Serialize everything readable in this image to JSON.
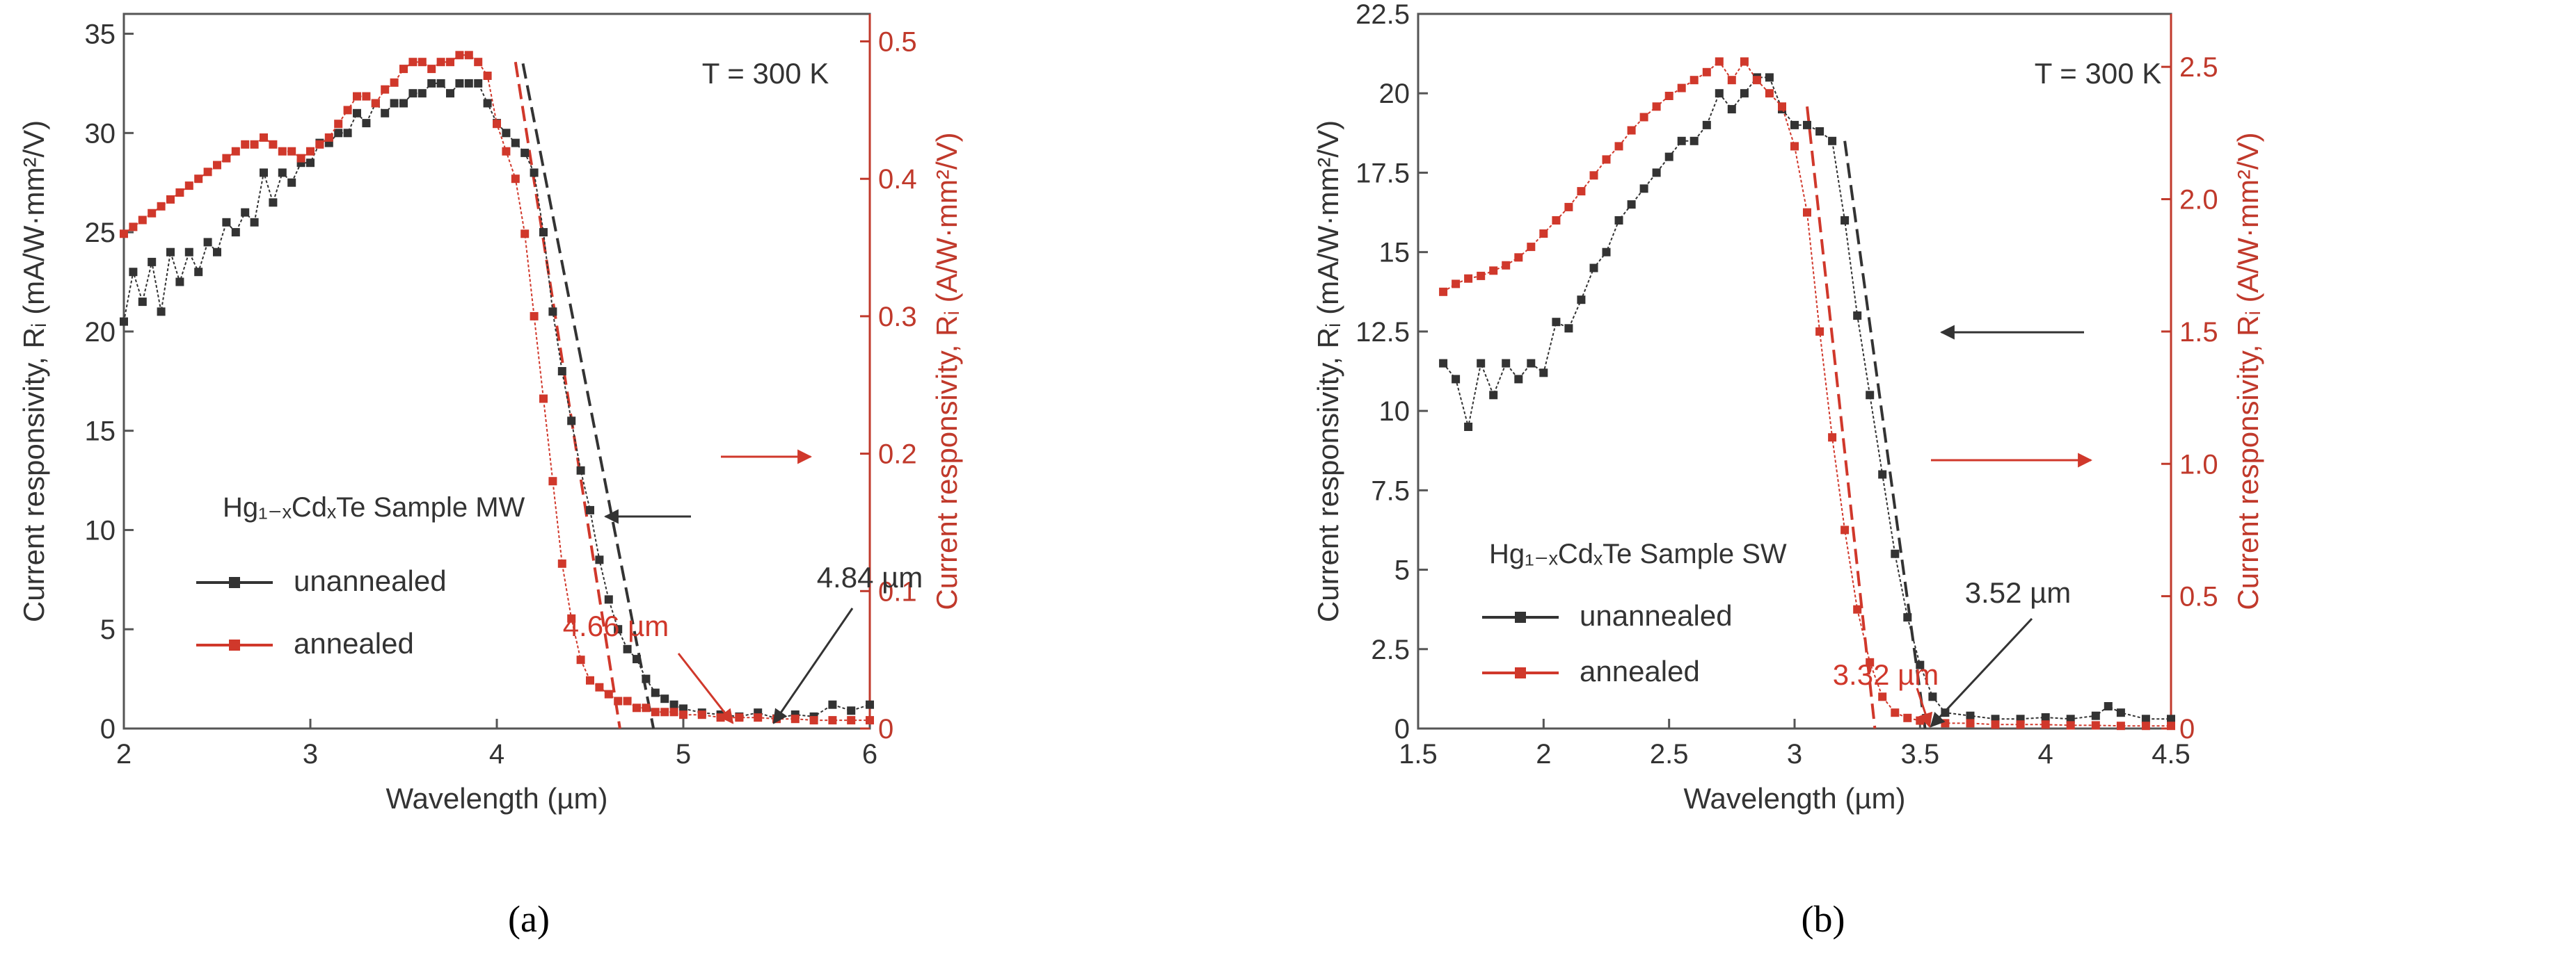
{
  "colors": {
    "black": "#333333",
    "red": "#d0382b",
    "axis_red": "#c0392b"
  },
  "chart_data": [
    {
      "panel": "a",
      "panel_label": "(a)",
      "type": "line",
      "xlabel": "Wavelength (µm)",
      "ylabel_left": "Current responsivity, Rᵢ (mA/W·mm²/V)",
      "ylabel_right": "Current responsivity, Rᵢ (A/W·mm²/V)",
      "xlim": [
        2,
        6
      ],
      "xticks": [
        2,
        3,
        4,
        5,
        6
      ],
      "ylim_left": [
        0,
        36
      ],
      "yticks_left": [
        0,
        5,
        10,
        15,
        20,
        25,
        30,
        35
      ],
      "ylim_right": [
        0,
        0.52
      ],
      "yticks_right": [
        0,
        0.1,
        0.2,
        0.3,
        0.4,
        0.5
      ],
      "ytick_labels_right": [
        "0",
        "0.1",
        "0.2",
        "0.3",
        "0.4",
        "0.5"
      ],
      "temperature_label": "T = 300 K",
      "legend_title": "Hg₁₋ₓCdₓTe Sample MW",
      "legend_position": "center-left",
      "cutoff_labels": [
        {
          "text": "4.84 µm",
          "x": 4.84,
          "color": "black"
        },
        {
          "text": "4.66 µm",
          "x": 4.66,
          "color": "red"
        }
      ],
      "series": [
        {
          "name": "unannealed",
          "axis": "left",
          "color": "black",
          "x": [
            2.0,
            2.05,
            2.1,
            2.15,
            2.2,
            2.25,
            2.3,
            2.35,
            2.4,
            2.45,
            2.5,
            2.55,
            2.6,
            2.65,
            2.7,
            2.75,
            2.8,
            2.85,
            2.9,
            2.95,
            3.0,
            3.05,
            3.1,
            3.15,
            3.2,
            3.25,
            3.3,
            3.35,
            3.4,
            3.45,
            3.5,
            3.55,
            3.6,
            3.65,
            3.7,
            3.75,
            3.8,
            3.85,
            3.9,
            3.95,
            4.0,
            4.05,
            4.1,
            4.15,
            4.2,
            4.25,
            4.3,
            4.35,
            4.4,
            4.45,
            4.5,
            4.55,
            4.6,
            4.65,
            4.7,
            4.75,
            4.8,
            4.85,
            4.9,
            4.95,
            5.0,
            5.1,
            5.2,
            5.3,
            5.4,
            5.5,
            5.6,
            5.7,
            5.8,
            5.9,
            6.0
          ],
          "y": [
            20.5,
            23.0,
            21.5,
            23.5,
            21.0,
            24.0,
            22.5,
            24.0,
            23.0,
            24.5,
            24.0,
            25.5,
            25.0,
            26.0,
            25.5,
            28.0,
            26.5,
            28.0,
            27.5,
            28.5,
            28.5,
            29.5,
            29.5,
            30.0,
            30.0,
            31.0,
            30.5,
            31.5,
            31.0,
            31.5,
            31.5,
            32.0,
            32.0,
            32.5,
            32.5,
            32.0,
            32.5,
            32.5,
            32.5,
            31.5,
            30.5,
            30.0,
            29.5,
            29.0,
            28.0,
            25.0,
            21.0,
            18.0,
            15.5,
            13.0,
            11.0,
            8.5,
            6.5,
            5.0,
            4.0,
            3.5,
            2.5,
            1.8,
            1.5,
            1.2,
            1.0,
            0.8,
            0.7,
            0.6,
            0.8,
            0.5,
            0.7,
            0.6,
            1.2,
            0.9,
            1.2
          ]
        },
        {
          "name": "annealed",
          "axis": "right",
          "color": "red",
          "x": [
            2.0,
            2.05,
            2.1,
            2.15,
            2.2,
            2.25,
            2.3,
            2.35,
            2.4,
            2.45,
            2.5,
            2.55,
            2.6,
            2.65,
            2.7,
            2.75,
            2.8,
            2.85,
            2.9,
            2.95,
            3.0,
            3.05,
            3.1,
            3.15,
            3.2,
            3.25,
            3.3,
            3.35,
            3.4,
            3.45,
            3.5,
            3.55,
            3.6,
            3.65,
            3.7,
            3.75,
            3.8,
            3.85,
            3.9,
            3.95,
            4.0,
            4.05,
            4.1,
            4.15,
            4.2,
            4.25,
            4.3,
            4.35,
            4.4,
            4.45,
            4.5,
            4.55,
            4.6,
            4.65,
            4.7,
            4.75,
            4.8,
            4.85,
            4.9,
            4.95,
            5.0,
            5.1,
            5.2,
            5.3,
            5.4,
            5.5,
            5.6,
            5.7,
            5.8,
            5.9,
            6.0
          ],
          "y": [
            0.36,
            0.365,
            0.37,
            0.375,
            0.38,
            0.385,
            0.39,
            0.395,
            0.4,
            0.405,
            0.41,
            0.415,
            0.42,
            0.425,
            0.425,
            0.43,
            0.425,
            0.42,
            0.42,
            0.415,
            0.42,
            0.425,
            0.43,
            0.44,
            0.45,
            0.46,
            0.46,
            0.455,
            0.465,
            0.47,
            0.48,
            0.485,
            0.485,
            0.48,
            0.485,
            0.485,
            0.49,
            0.49,
            0.485,
            0.475,
            0.44,
            0.42,
            0.4,
            0.36,
            0.3,
            0.24,
            0.18,
            0.12,
            0.08,
            0.05,
            0.035,
            0.03,
            0.025,
            0.02,
            0.02,
            0.015,
            0.015,
            0.012,
            0.012,
            0.012,
            0.01,
            0.01,
            0.008,
            0.008,
            0.008,
            0.007,
            0.007,
            0.006,
            0.006,
            0.006,
            0.006
          ]
        }
      ]
    },
    {
      "panel": "b",
      "panel_label": "(b)",
      "type": "line",
      "xlabel": "Wavelength (µm)",
      "ylabel_left": "Current responsivity, Rᵢ (mA/W·mm²/V)",
      "ylabel_right": "Current responsivity, Rᵢ (A/W·mm²/V)",
      "xlim": [
        1.5,
        4.5
      ],
      "xticks": [
        1.5,
        2,
        2.5,
        3,
        3.5,
        4,
        4.5
      ],
      "ylim_left": [
        0,
        22.5
      ],
      "yticks_left": [
        0,
        2.5,
        5,
        7.5,
        10,
        12.5,
        15,
        17.5,
        20,
        22.5
      ],
      "ylim_right": [
        0,
        2.7
      ],
      "yticks_right": [
        0,
        0.5,
        1.0,
        1.5,
        2.0,
        2.5
      ],
      "ytick_labels_right": [
        "0",
        "0.5",
        "1.0",
        "1.5",
        "2.0",
        "2.5"
      ],
      "temperature_label": "T = 300 K",
      "legend_title": "Hg₁₋ₓCdₓTe Sample SW",
      "legend_position": "bottom-left",
      "cutoff_labels": [
        {
          "text": "3.52 µm",
          "x": 3.52,
          "color": "black"
        },
        {
          "text": "3.32 µm",
          "x": 3.32,
          "color": "red"
        }
      ],
      "series": [
        {
          "name": "unannealed",
          "axis": "left",
          "color": "black",
          "x": [
            1.6,
            1.65,
            1.7,
            1.75,
            1.8,
            1.85,
            1.9,
            1.95,
            2.0,
            2.05,
            2.1,
            2.15,
            2.2,
            2.25,
            2.3,
            2.35,
            2.4,
            2.45,
            2.5,
            2.55,
            2.6,
            2.65,
            2.7,
            2.75,
            2.8,
            2.85,
            2.9,
            2.95,
            3.0,
            3.05,
            3.1,
            3.15,
            3.2,
            3.25,
            3.3,
            3.35,
            3.4,
            3.45,
            3.5,
            3.55,
            3.6,
            3.7,
            3.8,
            3.9,
            4.0,
            4.1,
            4.2,
            4.25,
            4.3,
            4.4,
            4.5
          ],
          "y": [
            11.5,
            11.0,
            9.5,
            11.5,
            10.5,
            11.5,
            11.0,
            11.5,
            11.2,
            12.8,
            12.6,
            13.5,
            14.5,
            15.0,
            16.0,
            16.5,
            17.0,
            17.5,
            18.0,
            18.5,
            18.5,
            19.0,
            20.0,
            19.5,
            20.0,
            20.5,
            20.5,
            19.5,
            19.0,
            19.0,
            18.8,
            18.5,
            16.0,
            13.0,
            10.5,
            8.0,
            5.5,
            3.5,
            2.0,
            1.0,
            0.5,
            0.4,
            0.3,
            0.3,
            0.35,
            0.3,
            0.4,
            0.7,
            0.5,
            0.3,
            0.3
          ]
        },
        {
          "name": "annealed",
          "axis": "right",
          "color": "red",
          "x": [
            1.6,
            1.65,
            1.7,
            1.75,
            1.8,
            1.85,
            1.9,
            1.95,
            2.0,
            2.05,
            2.1,
            2.15,
            2.2,
            2.25,
            2.3,
            2.35,
            2.4,
            2.45,
            2.5,
            2.55,
            2.6,
            2.65,
            2.7,
            2.75,
            2.8,
            2.85,
            2.9,
            2.95,
            3.0,
            3.05,
            3.1,
            3.15,
            3.2,
            3.25,
            3.3,
            3.35,
            3.4,
            3.45,
            3.5,
            3.6,
            3.7,
            3.8,
            3.9,
            4.0,
            4.1,
            4.2,
            4.3,
            4.4,
            4.5
          ],
          "y": [
            1.65,
            1.68,
            1.7,
            1.71,
            1.73,
            1.75,
            1.78,
            1.82,
            1.87,
            1.92,
            1.97,
            2.03,
            2.09,
            2.15,
            2.2,
            2.26,
            2.31,
            2.35,
            2.39,
            2.42,
            2.45,
            2.48,
            2.52,
            2.45,
            2.52,
            2.45,
            2.4,
            2.35,
            2.2,
            1.95,
            1.5,
            1.1,
            0.75,
            0.45,
            0.25,
            0.12,
            0.06,
            0.04,
            0.03,
            0.02,
            0.02,
            0.015,
            0.015,
            0.015,
            0.012,
            0.012,
            0.01,
            0.01,
            0.01
          ]
        }
      ]
    }
  ]
}
